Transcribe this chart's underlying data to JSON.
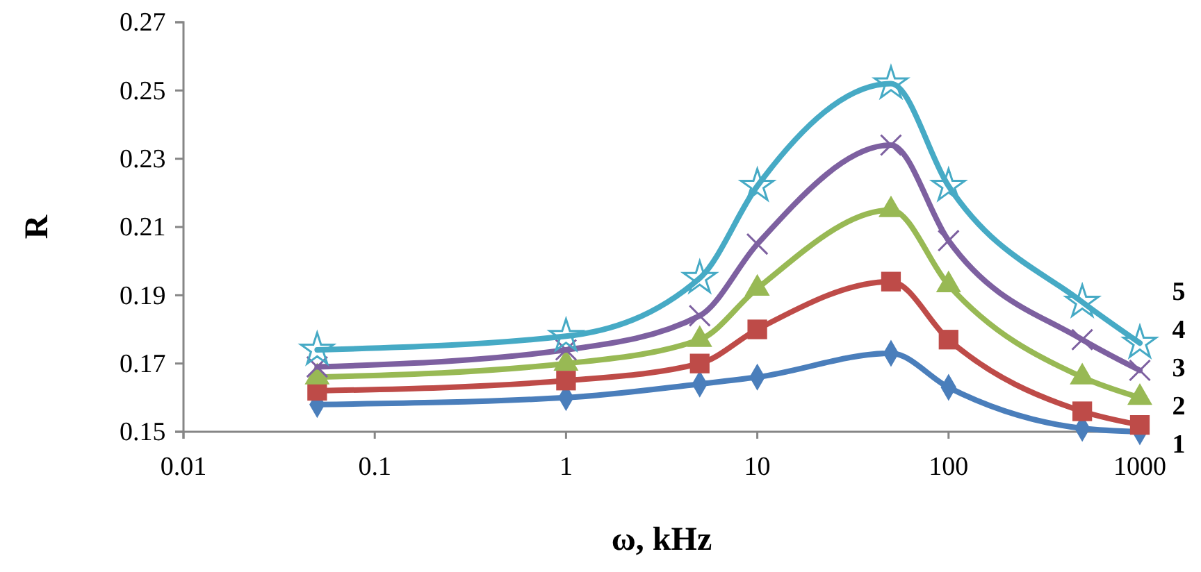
{
  "chart_data": {
    "type": "line",
    "xlabel": "ω, kHz",
    "ylabel": "R",
    "log": "x",
    "xlim": [
      0.01,
      1000
    ],
    "xticks": [
      0.01,
      0.1,
      1,
      10,
      100,
      1000
    ],
    "ylim": [
      0.15,
      0.27
    ],
    "yticks": [
      0.15,
      0.17,
      0.19,
      0.21,
      0.23,
      0.25,
      0.27
    ],
    "grid": false,
    "legend": "right",
    "x": [
      0.05,
      1,
      5,
      10,
      50,
      100,
      500,
      1000
    ],
    "series": [
      {
        "name": "1",
        "color": "#4a7ebb",
        "marker": "diamond",
        "values": [
          0.158,
          0.16,
          0.164,
          0.166,
          0.173,
          0.163,
          0.151,
          0.15
        ]
      },
      {
        "name": "2",
        "color": "#be4b48",
        "marker": "square",
        "values": [
          0.162,
          0.165,
          0.17,
          0.18,
          0.194,
          0.177,
          0.156,
          0.152
        ]
      },
      {
        "name": "3",
        "color": "#98b954",
        "marker": "triangle",
        "values": [
          0.166,
          0.17,
          0.177,
          0.192,
          0.215,
          0.193,
          0.166,
          0.16
        ]
      },
      {
        "name": "4",
        "color": "#7d60a0",
        "marker": "cross",
        "values": [
          0.169,
          0.174,
          0.184,
          0.205,
          0.234,
          0.206,
          0.177,
          0.168
        ]
      },
      {
        "name": "5",
        "color": "#46aac5",
        "marker": "star",
        "values": [
          0.174,
          0.178,
          0.195,
          0.222,
          0.252,
          0.222,
          0.188,
          0.176
        ]
      }
    ]
  }
}
